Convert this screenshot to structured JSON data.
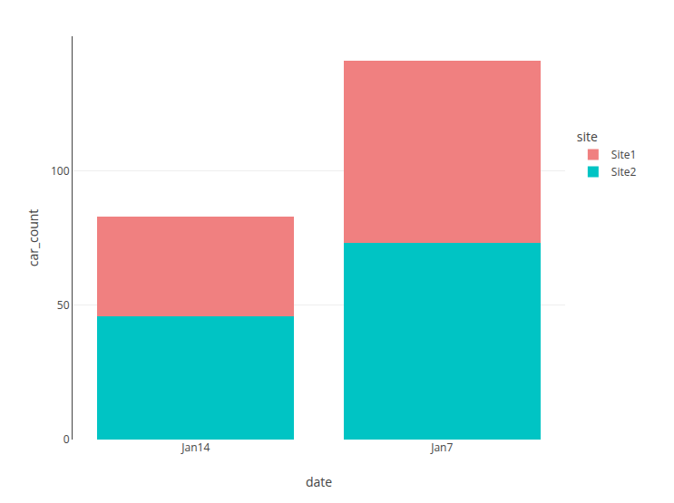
{
  "chart_data": {
    "type": "bar",
    "stacked": true,
    "categories": [
      "Jan14",
      "Jan7"
    ],
    "series": [
      {
        "name": "Site1",
        "color": "#F08080",
        "values": [
          37,
          68
        ]
      },
      {
        "name": "Site2",
        "color": "#00C4C4",
        "values": [
          46,
          73
        ]
      }
    ],
    "x_label": "date",
    "y_label": "car_count",
    "legend_title": "site",
    "legend": "right",
    "ylim": [
      0,
      150
    ],
    "yticks": [
      0,
      50,
      100
    ],
    "grid": true
  }
}
